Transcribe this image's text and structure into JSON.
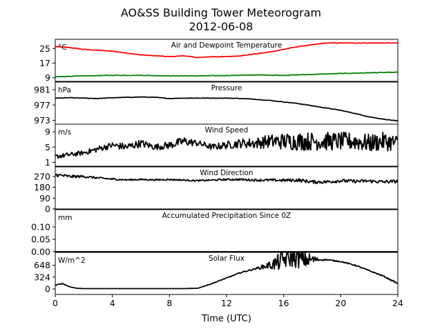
{
  "figure": {
    "title_line1": "AO&SS Building Tower Meteorogram",
    "title_line2": "2012-06-08",
    "xlabel": "Time (UTC)",
    "xticks": [
      0,
      4,
      8,
      12,
      16,
      20,
      24
    ],
    "xlim": [
      0,
      24
    ]
  },
  "chart_data": [
    {
      "type": "line",
      "title": "Air and Dewpoint Temperature",
      "unit": "°C",
      "ylim": [
        7,
        30
      ],
      "yticks": [
        9,
        17,
        25
      ],
      "style": "smooth",
      "series": [
        {
          "color": "#ff0000",
          "x": [
            0,
            1,
            2,
            3,
            4,
            5,
            6,
            7,
            8,
            9,
            10,
            11,
            12,
            13,
            14,
            15,
            16,
            17,
            18,
            19,
            20,
            21,
            22,
            23,
            24
          ],
          "values": [
            26,
            25.5,
            24.5,
            24,
            23.5,
            22.5,
            21.5,
            21,
            20.5,
            21,
            20,
            20.5,
            20.5,
            21,
            22,
            23,
            24.5,
            26,
            27,
            28,
            28,
            28,
            28,
            28,
            28
          ]
        },
        {
          "color": "#008000",
          "x": [
            0,
            2,
            4,
            6,
            8,
            10,
            12,
            14,
            16,
            18,
            20,
            22,
            24
          ],
          "values": [
            9.5,
            10,
            10.3,
            10.3,
            10,
            10,
            10.2,
            10.5,
            10.3,
            10.8,
            11.3,
            11.7,
            12
          ]
        }
      ]
    },
    {
      "type": "line",
      "title": "Pressure",
      "unit": "hPa",
      "ylim": [
        972,
        983
      ],
      "yticks": [
        973,
        977,
        981
      ],
      "style": "smooth",
      "series": [
        {
          "color": "#000000",
          "x": [
            0,
            1,
            2,
            3,
            4,
            5,
            6,
            7,
            8,
            9,
            10,
            11,
            12,
            13,
            14,
            15,
            16,
            17,
            18,
            19,
            20,
            21,
            22,
            23,
            24
          ],
          "values": [
            978.8,
            978.9,
            978.8,
            978.7,
            978.9,
            979,
            979.1,
            979,
            978.7,
            978.8,
            978.8,
            978.8,
            978.8,
            978.7,
            978.5,
            978.2,
            977.8,
            977.4,
            976.8,
            976.2,
            975.6,
            974.8,
            973.9,
            973.3,
            972.8
          ]
        }
      ]
    },
    {
      "type": "line",
      "title": "Wind Speed",
      "unit": "m/s",
      "ylim": [
        0,
        11
      ],
      "yticks": [
        1,
        5,
        9
      ],
      "style": "noisy",
      "series": [
        {
          "color": "#000000",
          "x": [
            0,
            1,
            2,
            3,
            4,
            5,
            6,
            7,
            8,
            9,
            10,
            11,
            12,
            13,
            14,
            15,
            16,
            17,
            18,
            19,
            20,
            21,
            22,
            23,
            24
          ],
          "values": [
            2.5,
            3,
            3.5,
            4.5,
            5.5,
            5,
            6,
            5,
            5.5,
            6.5,
            6,
            5,
            5.5,
            6,
            6,
            6.5,
            6.5,
            6.5,
            6.5,
            6.5,
            6.5,
            6.5,
            6,
            6.5,
            6
          ]
        }
      ],
      "noise_amplitude": [
        0.6,
        0.6,
        0.6,
        0.8,
        0.8,
        1,
        1,
        0.8,
        1,
        1.2,
        0.8,
        0.8,
        1,
        1.2,
        1.4,
        1.8,
        2.2,
        2.4,
        2.4,
        2.4,
        2.4,
        2.4,
        2.4,
        2.4,
        2.2
      ]
    },
    {
      "type": "line",
      "title": "Wind Direction",
      "unit": "",
      "ylim": [
        0,
        350
      ],
      "yticks": [
        0,
        90,
        180,
        270
      ],
      "style": "noisy",
      "series": [
        {
          "color": "#000000",
          "x": [
            0,
            1,
            2,
            3,
            4,
            5,
            6,
            7,
            8,
            9,
            10,
            11,
            12,
            13,
            14,
            15,
            16,
            17,
            18,
            19,
            20,
            21,
            22,
            23,
            24
          ],
          "values": [
            285,
            270,
            270,
            258,
            248,
            242,
            245,
            242,
            245,
            240,
            235,
            240,
            245,
            245,
            240,
            240,
            238,
            240,
            225,
            225,
            235,
            230,
            232,
            225,
            230
          ]
        }
      ],
      "noise_amplitude": [
        15,
        12,
        10,
        8,
        8,
        6,
        6,
        6,
        6,
        6,
        6,
        6,
        8,
        8,
        10,
        10,
        12,
        14,
        14,
        14,
        14,
        14,
        14,
        14,
        14
      ]
    },
    {
      "type": "line",
      "title": "Accumulated Precipitation Since 0Z",
      "unit": "mm",
      "ylim": [
        0,
        0.17
      ],
      "yticks": [
        0.0,
        0.05,
        0.1
      ],
      "ytick_labels": [
        "0.00",
        "0.05",
        "0.10"
      ],
      "style": "smooth",
      "series": [
        {
          "color": "#000000",
          "x": [
            0,
            24
          ],
          "values": [
            0,
            0
          ]
        }
      ]
    },
    {
      "type": "line",
      "title": "Solar Flux",
      "unit": "W/m^2",
      "ylim": [
        -150,
        1000
      ],
      "yticks": [
        0,
        324,
        648
      ],
      "style": "noisy",
      "series": [
        {
          "color": "#000000",
          "x": [
            0,
            0.5,
            1,
            1.5,
            2,
            3,
            4,
            5,
            6,
            7,
            8,
            9,
            10,
            11,
            12,
            13,
            14,
            15,
            15.5,
            16,
            16.5,
            17,
            17.5,
            18,
            18.5,
            19,
            20,
            21,
            22,
            23,
            24
          ],
          "values": [
            100,
            150,
            60,
            20,
            10,
            10,
            10,
            10,
            10,
            10,
            10,
            10,
            20,
            150,
            300,
            450,
            550,
            650,
            700,
            800,
            850,
            830,
            800,
            800,
            800,
            800,
            750,
            650,
            500,
            350,
            150
          ]
        }
      ],
      "noise_amplitude": [
        10,
        10,
        5,
        0,
        0,
        0,
        0,
        0,
        0,
        0,
        0,
        0,
        0,
        10,
        10,
        15,
        20,
        100,
        220,
        250,
        260,
        260,
        240,
        150,
        30,
        15,
        15,
        15,
        15,
        15,
        20
      ]
    }
  ]
}
